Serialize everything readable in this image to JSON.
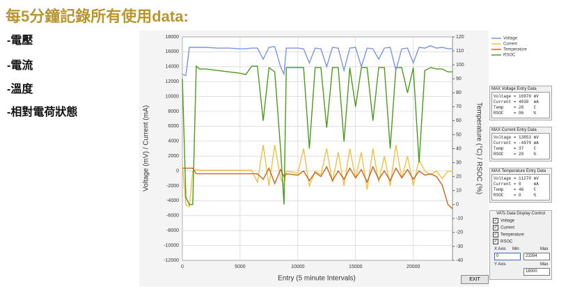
{
  "slide": {
    "title": "每5分鐘記錄所有使用data:",
    "bullets": [
      "-電壓",
      "-電流",
      "-溫度",
      "-相對電荷狀態"
    ]
  },
  "chart_data": {
    "type": "line",
    "x": [
      0,
      300,
      600,
      900,
      1200,
      1500,
      2000,
      3000,
      4000,
      5000,
      5500,
      6000,
      6500,
      7000,
      7500,
      8000,
      8500,
      8800,
      9000,
      10000,
      10500,
      11000,
      11500,
      12000,
      12500,
      13000,
      13500,
      14000,
      14500,
      15000,
      15500,
      16000,
      16500,
      17000,
      17500,
      18000,
      18500,
      19000,
      19500,
      20000,
      20500,
      21000,
      21500,
      22000,
      22500,
      23000,
      23394
    ],
    "series": [
      {
        "name": "Voltage",
        "color": "#7b93e0",
        "values": [
          13000,
          12800,
          16600,
          16600,
          16600,
          16600,
          16600,
          16500,
          16500,
          16400,
          16400,
          16500,
          16500,
          15000,
          16600,
          16700,
          14000,
          13000,
          16500,
          16500,
          16400,
          14500,
          16500,
          16400,
          14000,
          16600,
          16500,
          13500,
          16500,
          16600,
          14000,
          16500,
          16400,
          15000,
          16500,
          16600,
          13500,
          16400,
          16500,
          14500,
          16600,
          16500,
          16800,
          16500,
          16600,
          16400,
          16400
        ]
      },
      {
        "name": "Current",
        "color": "#f0c040",
        "values": [
          1000,
          -4500,
          -4800,
          0,
          200,
          100,
          100,
          100,
          100,
          100,
          100,
          100,
          -1500,
          3500,
          -2000,
          3500,
          -1000,
          -2000,
          0,
          -300,
          3000,
          -2000,
          0,
          -500,
          3000,
          -1500,
          2500,
          -2000,
          3000,
          -1000,
          2500,
          -2500,
          3000,
          -1500,
          2000,
          -2000,
          3500,
          -1000,
          2000,
          -2000,
          1500,
          0,
          -500,
          0,
          -1000,
          0,
          -100
        ]
      },
      {
        "name": "Temperature",
        "color": "#c8641e",
        "axis": "y2",
        "values": [
          26,
          26,
          26,
          26,
          22,
          22,
          22,
          22,
          22,
          22,
          22,
          22,
          22,
          18,
          26,
          15,
          25,
          20,
          22,
          21,
          24,
          17,
          23,
          20,
          27,
          17,
          24,
          18,
          26,
          19,
          25,
          16,
          27,
          18,
          24,
          17,
          26,
          19,
          25,
          18,
          24,
          21,
          22,
          20,
          14,
          0,
          -3
        ]
      },
      {
        "name": "RSOC",
        "color": "#4a9a1e",
        "axis": "y2",
        "values": [
          90,
          5,
          0,
          0,
          99,
          97,
          97,
          96,
          95,
          94,
          93,
          99,
          99,
          60,
          98,
          95,
          40,
          0,
          98,
          98,
          98,
          40,
          98,
          98,
          55,
          98,
          98,
          45,
          98,
          70,
          98,
          98,
          60,
          98,
          98,
          40,
          98,
          98,
          80,
          98,
          30,
          96,
          98,
          97,
          97,
          95,
          95
        ]
      }
    ],
    "xlabel": "Entry (5 minute Intervals)",
    "ylabel": "Voltage (mV) / Current (mA)",
    "y2label": "Temperature (°C) / RSOC (%)",
    "xlim": [
      0,
      23394
    ],
    "xticks": [
      0,
      5000,
      10000,
      15000,
      20000
    ],
    "ylim": [
      -12000,
      18000
    ],
    "yticks": [
      -12000,
      -10000,
      -8000,
      -6000,
      -4000,
      -2000,
      0,
      2000,
      4000,
      6000,
      8000,
      10000,
      12000,
      14000,
      16000,
      18000
    ],
    "y2lim": [
      -40,
      120
    ],
    "y2ticks": [
      -40,
      -30,
      -20,
      -10,
      0,
      10,
      20,
      30,
      40,
      50,
      60,
      70,
      80,
      90,
      100,
      110,
      120
    ],
    "grid": true,
    "legend": "right"
  },
  "panels": [
    {
      "title": "MAX Voltage Entry Data",
      "rows": [
        "Voltage = 16970 mV",
        "Current = 4030  mA",
        "Temp    = 28    C",
        "RSOC    = 96    %"
      ]
    },
    {
      "title": "MAX Current Entry Data",
      "rows": [
        "Voltage = 13853 mV",
        "Current = -4970 mA",
        "Temp    = 37    C",
        "RSOC    = 29    %"
      ]
    },
    {
      "title": "MAX Temperature Entry Data",
      "rows": [
        "Voltage = 11270 mV",
        "Current = 0     mA",
        "Temp    = 46    C",
        "RSOC    = 0     %"
      ]
    }
  ],
  "control": {
    "title": "VATs Data Display Control",
    "checks": [
      "Voltage",
      "Current",
      "Temperature",
      "RSOC"
    ],
    "x_axis": "X Axis",
    "min": "Min",
    "max": "Max",
    "x_min": "0",
    "x_max": "23394",
    "y_axis": "Y Axis",
    "y_max_label": "Max",
    "y_max": "18000",
    "exit": "EXIT"
  }
}
